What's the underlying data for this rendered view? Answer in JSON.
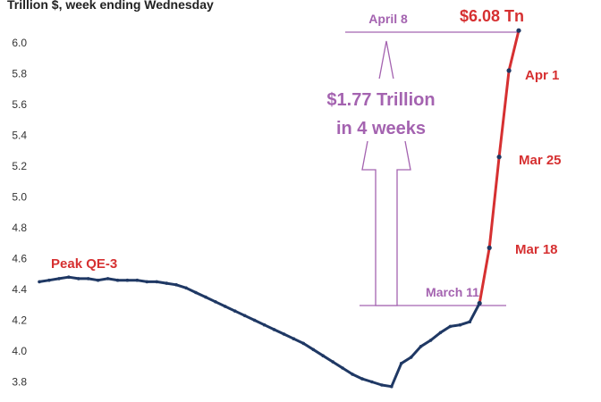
{
  "chart_data": {
    "type": "line",
    "title": "Trillion $, week ending Wednesday",
    "ylim": [
      3.75,
      6.1
    ],
    "yticks": [
      "6.0",
      "5.8",
      "5.6",
      "5.4",
      "5.2",
      "5.0",
      "4.8",
      "4.6",
      "4.4",
      "4.2",
      "4.0",
      "3.8"
    ],
    "grid": false,
    "series": [
      {
        "color": "#1f3864",
        "values": [
          4.45,
          4.46,
          4.47,
          4.48,
          4.47,
          4.47,
          4.46,
          4.47,
          4.46,
          4.46,
          4.46,
          4.45,
          4.45,
          4.44,
          4.43,
          4.41,
          4.38,
          4.35,
          4.32,
          4.29,
          4.26,
          4.23,
          4.2,
          4.17,
          4.14,
          4.11,
          4.08,
          4.05,
          4.01,
          3.97,
          3.93,
          3.89,
          3.85,
          3.82,
          3.8,
          3.78,
          3.77,
          3.92,
          3.96,
          4.03,
          4.07,
          4.12,
          4.16,
          4.17,
          4.19,
          4.31,
          4.67,
          5.26,
          5.82,
          6.08
        ]
      }
    ],
    "annotations": {
      "peak_label": "Peak QE-3",
      "top_value": "$6.08 Tn",
      "week_labels": [
        "Apr 1",
        "Mar 25",
        "Mar 18"
      ],
      "april_label": "April 8",
      "march_label": "March 11",
      "increase_line1": "$1.77 Trillion",
      "increase_line2": "in 4 weeks"
    },
    "colors": {
      "line": "#1f3864",
      "highlight": "#d63031",
      "annotation": "#a463b0"
    }
  }
}
